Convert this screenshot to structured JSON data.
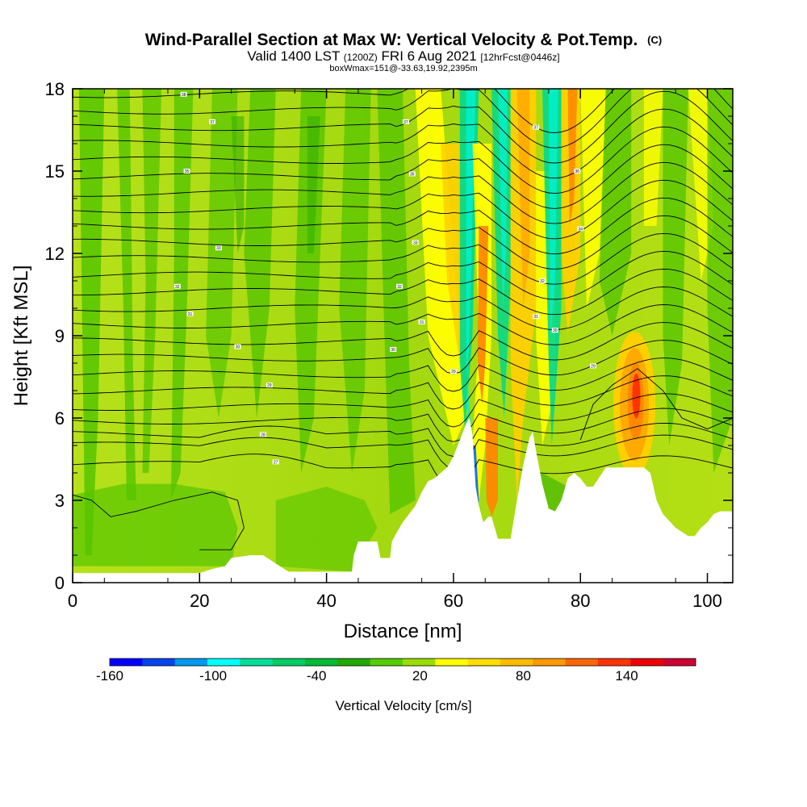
{
  "header": {
    "title": "Wind-Parallel Section at Max W: Vertical Velocity & Pot.Temp.",
    "copyright": "(C)",
    "valid_main": "Valid 1400 LST",
    "valid_utc": "(1200Z)",
    "valid_date": "FRI 6 Aug 2021",
    "forecast": "[12hrFcst@0446z]",
    "box_info": "boxWmax=151@-33.63,19.92,2395m"
  },
  "chart_data": {
    "type": "heatmap",
    "xlabel": "Distance [nm]",
    "ylabel": "Height [Kft MSL]",
    "xlim": [
      0,
      104
    ],
    "ylim": [
      0,
      18
    ],
    "x_ticks": [
      "0",
      "20",
      "40",
      "60",
      "80",
      "100"
    ],
    "x_tick_values": [
      0,
      20,
      40,
      60,
      80,
      100
    ],
    "y_ticks": [
      "0",
      "3",
      "6",
      "9",
      "12",
      "15",
      "18"
    ],
    "y_tick_values": [
      0,
      3,
      6,
      9,
      12,
      15,
      18
    ],
    "colorbar": {
      "label": "Vertical Velocity [cm/s]",
      "tick_labels": [
        "-160",
        "-100",
        "-40",
        "20",
        "80",
        "140"
      ],
      "tick_values": [
        -160,
        -100,
        -40,
        20,
        80,
        140
      ],
      "min": -160,
      "max": 180,
      "colors": [
        "#0000ff",
        "#0044ee",
        "#0099ee",
        "#00ffff",
        "#00dd99",
        "#00cc66",
        "#00bb33",
        "#22aa00",
        "#55cc00",
        "#99dd00",
        "#ffff00",
        "#ffdd00",
        "#ffbb00",
        "#ff9900",
        "#ff6600",
        "#ff3300",
        "#ee0000",
        "#cc0033"
      ]
    },
    "terrain_kft": [
      [
        0,
        0.35
      ],
      [
        20,
        0.35
      ],
      [
        22,
        0.5
      ],
      [
        24,
        0.6
      ],
      [
        25,
        0.9
      ],
      [
        28,
        1.0
      ],
      [
        30,
        1.0
      ],
      [
        32,
        0.7
      ],
      [
        34,
        0.4
      ],
      [
        44,
        0.4
      ],
      [
        44.3,
        1.0
      ],
      [
        45,
        1.5
      ],
      [
        48,
        1.5
      ],
      [
        48.5,
        0.9
      ],
      [
        50,
        0.9
      ],
      [
        50.3,
        1.5
      ],
      [
        51,
        1.8
      ],
      [
        52,
        2.2
      ],
      [
        53,
        2.5
      ],
      [
        54,
        2.8
      ],
      [
        55,
        3.3
      ],
      [
        56,
        3.7
      ],
      [
        57,
        3.8
      ],
      [
        58,
        4.0
      ],
      [
        59,
        4.2
      ],
      [
        60,
        4.6
      ],
      [
        61,
        5.2
      ],
      [
        62,
        5.8
      ],
      [
        62.5,
        6.0
      ],
      [
        63,
        5.4
      ],
      [
        63.5,
        3.5
      ],
      [
        64,
        2.8
      ],
      [
        64.7,
        2.2
      ],
      [
        65.5,
        2.4
      ],
      [
        66,
        2.4
      ],
      [
        67,
        1.6
      ],
      [
        69,
        1.6
      ],
      [
        70,
        3.0
      ],
      [
        71,
        4.3
      ],
      [
        72,
        5.3
      ],
      [
        72.5,
        5.5
      ],
      [
        73,
        4.8
      ],
      [
        74,
        3.6
      ],
      [
        75,
        2.7
      ],
      [
        76,
        2.6
      ],
      [
        77,
        3.0
      ],
      [
        78,
        3.8
      ],
      [
        79,
        4.0
      ],
      [
        80,
        3.8
      ],
      [
        81,
        3.5
      ],
      [
        82,
        3.5
      ],
      [
        84,
        4.2
      ],
      [
        86,
        4.2
      ],
      [
        90,
        4.2
      ],
      [
        91,
        4.0
      ],
      [
        92,
        3.0
      ],
      [
        93,
        2.5
      ],
      [
        95,
        2.0
      ],
      [
        97,
        1.7
      ],
      [
        98,
        1.7
      ],
      [
        99,
        2.0
      ],
      [
        100,
        2.2
      ],
      [
        101,
        2.5
      ],
      [
        102,
        2.6
      ],
      [
        104,
        2.6
      ]
    ],
    "theta_contour_labels": [
      {
        "x": 17.5,
        "y": 17.8,
        "text": "38"
      },
      {
        "x": 22,
        "y": 16.8,
        "text": "37"
      },
      {
        "x": 18,
        "y": 15.0,
        "text": "35"
      },
      {
        "x": 23,
        "y": 12.2,
        "text": "33"
      },
      {
        "x": 16.5,
        "y": 10.8,
        "text": "32"
      },
      {
        "x": 18.5,
        "y": 9.8,
        "text": "31"
      },
      {
        "x": 26,
        "y": 8.6,
        "text": "30"
      },
      {
        "x": 31,
        "y": 7.2,
        "text": "29"
      },
      {
        "x": 30,
        "y": 5.4,
        "text": "28"
      },
      {
        "x": 32,
        "y": 4.4,
        "text": "27"
      },
      {
        "x": 52.5,
        "y": 16.8,
        "text": "37"
      },
      {
        "x": 53.5,
        "y": 14.9,
        "text": "35"
      },
      {
        "x": 54,
        "y": 12.4,
        "text": "33"
      },
      {
        "x": 51.5,
        "y": 10.8,
        "text": "32"
      },
      {
        "x": 55,
        "y": 9.5,
        "text": "31"
      },
      {
        "x": 50.5,
        "y": 8.5,
        "text": "30"
      },
      {
        "x": 60,
        "y": 7.7,
        "text": "29"
      },
      {
        "x": 73,
        "y": 16.6,
        "text": "37"
      },
      {
        "x": 79.5,
        "y": 15.0,
        "text": "36"
      },
      {
        "x": 80,
        "y": 12.9,
        "text": "34"
      },
      {
        "x": 74,
        "y": 11.0,
        "text": "32"
      },
      {
        "x": 73,
        "y": 9.7,
        "text": "31"
      },
      {
        "x": 76,
        "y": 9.2,
        "text": "30"
      },
      {
        "x": 82,
        "y": 7.9,
        "text": "29"
      }
    ]
  }
}
